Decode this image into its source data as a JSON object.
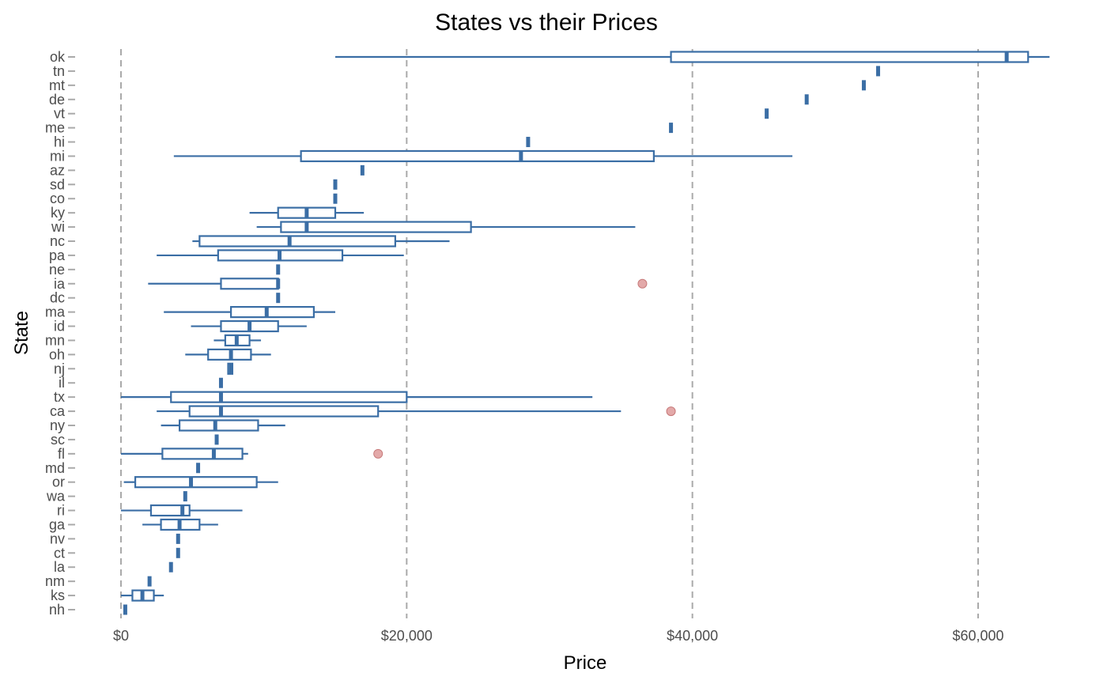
{
  "chart_data": {
    "type": "boxplot",
    "orientation": "horizontal",
    "title": "States vs their Prices",
    "xlabel": "Price",
    "ylabel": "State",
    "xlim": [
      -3000,
      65000
    ],
    "x_ticks": [
      0,
      20000,
      40000,
      60000
    ],
    "x_tick_labels": [
      "$0",
      "$20,000",
      "$40,000",
      "$60,000"
    ],
    "vertical_dashed_gridlines": true,
    "box_color": "#3b6ea5",
    "outlier_color": "#d98c8c",
    "categories": [
      "ok",
      "tn",
      "mt",
      "de",
      "vt",
      "me",
      "hi",
      "mi",
      "az",
      "sd",
      "co",
      "ky",
      "wi",
      "nc",
      "pa",
      "ne",
      "ia",
      "dc",
      "ma",
      "id",
      "mn",
      "oh",
      "nj",
      "il",
      "tx",
      "ca",
      "ny",
      "sc",
      "fl",
      "md",
      "or",
      "wa",
      "ri",
      "ga",
      "nv",
      "ct",
      "la",
      "nm",
      "ks",
      "nh"
    ],
    "boxes": [
      {
        "state": "ok",
        "min": 15000,
        "q1": 38500,
        "median": 62000,
        "q3": 63500,
        "max": 65000
      },
      {
        "state": "tn",
        "min": 53000,
        "q1": 53000,
        "median": 53000,
        "q3": 53000,
        "max": 53000
      },
      {
        "state": "mt",
        "min": 52000,
        "q1": 52000,
        "median": 52000,
        "q3": 52000,
        "max": 52000
      },
      {
        "state": "de",
        "min": 48000,
        "q1": 48000,
        "median": 48000,
        "q3": 48000,
        "max": 48000
      },
      {
        "state": "vt",
        "min": 45200,
        "q1": 45200,
        "median": 45200,
        "q3": 45200,
        "max": 45200
      },
      {
        "state": "me",
        "min": 38500,
        "q1": 38500,
        "median": 38500,
        "q3": 38500,
        "max": 38500
      },
      {
        "state": "hi",
        "min": 28500,
        "q1": 28500,
        "median": 28500,
        "q3": 28500,
        "max": 28500
      },
      {
        "state": "mi",
        "min": 3700,
        "q1": 12600,
        "median": 28000,
        "q3": 37300,
        "max": 47000
      },
      {
        "state": "az",
        "min": 16900,
        "q1": 16900,
        "median": 16900,
        "q3": 16900,
        "max": 16900
      },
      {
        "state": "sd",
        "min": 15000,
        "q1": 15000,
        "median": 15000,
        "q3": 15000,
        "max": 15000
      },
      {
        "state": "co",
        "min": 15000,
        "q1": 15000,
        "median": 15000,
        "q3": 15000,
        "max": 15000
      },
      {
        "state": "ky",
        "min": 9000,
        "q1": 11000,
        "median": 13000,
        "q3": 15000,
        "max": 17000
      },
      {
        "state": "wi",
        "min": 9500,
        "q1": 11200,
        "median": 13000,
        "q3": 24500,
        "max": 36000
      },
      {
        "state": "nc",
        "min": 5000,
        "q1": 5500,
        "median": 11800,
        "q3": 19200,
        "max": 23000
      },
      {
        "state": "pa",
        "min": 2500,
        "q1": 6800,
        "median": 11100,
        "q3": 15500,
        "max": 19800
      },
      {
        "state": "ne",
        "min": 11000,
        "q1": 11000,
        "median": 11000,
        "q3": 11000,
        "max": 11000
      },
      {
        "state": "ia",
        "min": 1900,
        "q1": 7000,
        "median": 11000,
        "q3": 11000,
        "max": 11000,
        "outliers": [
          36500
        ]
      },
      {
        "state": "dc",
        "min": 11000,
        "q1": 11000,
        "median": 11000,
        "q3": 11000,
        "max": 11000
      },
      {
        "state": "ma",
        "min": 3000,
        "q1": 7700,
        "median": 10200,
        "q3": 13500,
        "max": 15000
      },
      {
        "state": "id",
        "min": 4900,
        "q1": 7000,
        "median": 9000,
        "q3": 11000,
        "max": 13000
      },
      {
        "state": "mn",
        "min": 6500,
        "q1": 7300,
        "median": 8100,
        "q3": 9000,
        "max": 9800
      },
      {
        "state": "oh",
        "min": 4500,
        "q1": 6100,
        "median": 7700,
        "q3": 9100,
        "max": 10500
      },
      {
        "state": "nj",
        "min": 7500,
        "q1": 7500,
        "median": 7700,
        "q3": 7800,
        "max": 7800
      },
      {
        "state": "il",
        "min": 7000,
        "q1": 7000,
        "median": 7000,
        "q3": 7000,
        "max": 7000
      },
      {
        "state": "tx",
        "min": 0,
        "q1": 3500,
        "median": 7000,
        "q3": 20000,
        "max": 33000
      },
      {
        "state": "ca",
        "min": 2500,
        "q1": 4800,
        "median": 7000,
        "q3": 18000,
        "max": 35000,
        "outliers": [
          38500
        ]
      },
      {
        "state": "ny",
        "min": 2800,
        "q1": 4100,
        "median": 6600,
        "q3": 9600,
        "max": 11500
      },
      {
        "state": "sc",
        "min": 6700,
        "q1": 6700,
        "median": 6700,
        "q3": 6700,
        "max": 6700
      },
      {
        "state": "fl",
        "min": 0,
        "q1": 2900,
        "median": 6500,
        "q3": 8500,
        "max": 8900,
        "outliers": [
          18000
        ]
      },
      {
        "state": "md",
        "min": 5400,
        "q1": 5400,
        "median": 5400,
        "q3": 5400,
        "max": 5400
      },
      {
        "state": "or",
        "min": 200,
        "q1": 1000,
        "median": 4900,
        "q3": 9500,
        "max": 11000
      },
      {
        "state": "wa",
        "min": 4500,
        "q1": 4500,
        "median": 4500,
        "q3": 4500,
        "max": 4500
      },
      {
        "state": "ri",
        "min": 0,
        "q1": 2100,
        "median": 4300,
        "q3": 4800,
        "max": 8500
      },
      {
        "state": "ga",
        "min": 1500,
        "q1": 2800,
        "median": 4100,
        "q3": 5500,
        "max": 6800
      },
      {
        "state": "nv",
        "min": 4000,
        "q1": 4000,
        "median": 4000,
        "q3": 4000,
        "max": 4000
      },
      {
        "state": "ct",
        "min": 4000,
        "q1": 4000,
        "median": 4000,
        "q3": 4000,
        "max": 4000
      },
      {
        "state": "la",
        "min": 3500,
        "q1": 3500,
        "median": 3500,
        "q3": 3500,
        "max": 3500
      },
      {
        "state": "nm",
        "min": 2000,
        "q1": 2000,
        "median": 2000,
        "q3": 2000,
        "max": 2000
      },
      {
        "state": "ks",
        "min": 0,
        "q1": 800,
        "median": 1500,
        "q3": 2300,
        "max": 3000
      },
      {
        "state": "nh",
        "min": 300,
        "q1": 300,
        "median": 300,
        "q3": 300,
        "max": 300
      }
    ]
  }
}
